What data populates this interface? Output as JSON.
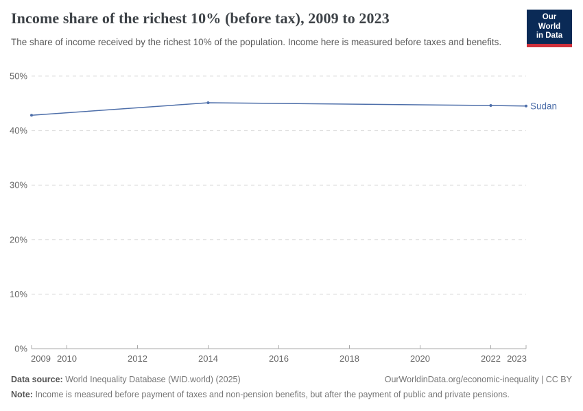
{
  "header": {
    "title": "Income share of the richest 10% (before tax), 2009 to 2023",
    "subtitle": "The share of income received by the richest 10% of the population. Income here is measured before taxes and benefits.",
    "logo": {
      "line1": "Our World",
      "line2": "in Data"
    }
  },
  "chart_data": {
    "type": "line",
    "title": "Income share of the richest 10% (before tax), 2009 to 2023",
    "xlabel": "",
    "ylabel": "",
    "x": {
      "range": [
        2009,
        2023
      ],
      "ticks": [
        2009,
        2010,
        2012,
        2014,
        2016,
        2018,
        2020,
        2022,
        2023
      ]
    },
    "y": {
      "range": [
        0,
        50
      ],
      "ticks": [
        0,
        10,
        20,
        30,
        40,
        50
      ],
      "suffix": "%"
    },
    "grid": {
      "horizontal": true,
      "style": "dashed",
      "legend_position": "end-of-line"
    },
    "series": [
      {
        "name": "Sudan",
        "color": "#4d6ea9",
        "x": [
          2009,
          2014,
          2022,
          2023
        ],
        "values": [
          42.8,
          45.1,
          44.6,
          44.5
        ],
        "markers": true,
        "end_label": "Sudan"
      }
    ]
  },
  "footer": {
    "data_source_label": "Data source:",
    "data_source": "World Inequality Database (WID.world) (2025)",
    "link": "OurWorldinData.org/economic-inequality | CC BY",
    "note_label": "Note:",
    "note": "Income is measured before payment of taxes and non-pension benefits, but after the payment of public and private pensions."
  },
  "colors": {
    "line": "#4d6ea9",
    "logo_bg": "#0a2a56",
    "logo_stripe": "#cf303b",
    "grid": "#dcdcdc",
    "axis": "#a8a8a8",
    "tick_label": "#666666"
  }
}
